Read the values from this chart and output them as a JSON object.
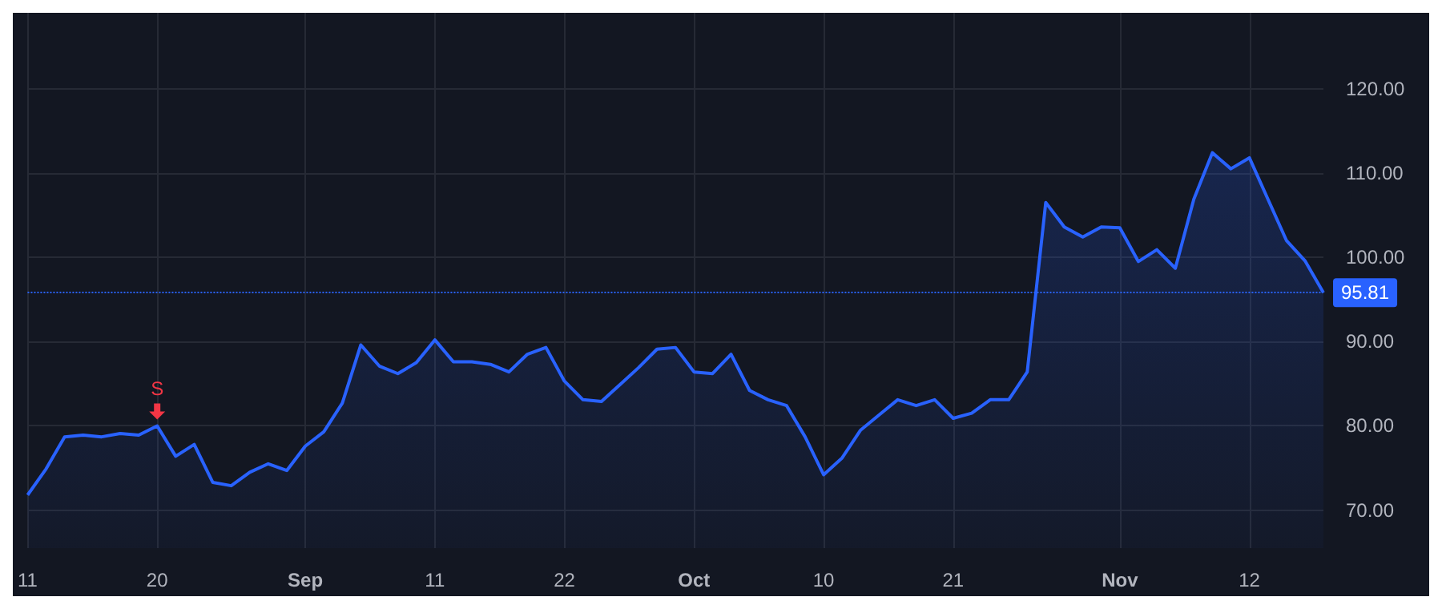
{
  "chart_data": {
    "type": "area",
    "categories": [
      "11",
      null,
      null,
      null,
      null,
      null,
      null,
      "20",
      null,
      null,
      null,
      null,
      null,
      null,
      null,
      "Sep",
      null,
      null,
      null,
      null,
      null,
      null,
      "11",
      null,
      null,
      null,
      null,
      null,
      null,
      "22",
      null,
      null,
      null,
      null,
      null,
      null,
      "Oct",
      null,
      null,
      null,
      null,
      null,
      null,
      "10",
      null,
      null,
      null,
      null,
      null,
      null,
      "21",
      null,
      null,
      null,
      null,
      null,
      null,
      null,
      null,
      "Nov",
      null,
      null,
      null,
      null,
      null,
      null,
      "12",
      null,
      null,
      null,
      null
    ],
    "series": [
      {
        "color": "#2962ff",
        "values": [
          71.8,
          74.9,
          78.7,
          78.9,
          78.7,
          79.1,
          78.9,
          80.0,
          76.4,
          77.8,
          73.3,
          72.9,
          74.5,
          75.5,
          74.7,
          77.6,
          79.3,
          82.7,
          89.6,
          87.1,
          86.2,
          87.5,
          90.2,
          87.6,
          87.6,
          87.3,
          86.4,
          88.5,
          89.3,
          85.3,
          83.1,
          82.9,
          84.9,
          86.9,
          89.1,
          89.3,
          86.4,
          86.2,
          88.5,
          84.2,
          83.1,
          82.4,
          78.7,
          74.2,
          76.2,
          79.5,
          81.3,
          83.1,
          82.4,
          83.1,
          80.9,
          81.5,
          83.1,
          83.1,
          86.4,
          106.5,
          103.6,
          102.4,
          103.6,
          103.5,
          99.5,
          100.9,
          98.7,
          106.9,
          112.4,
          110.5,
          111.8,
          106.9,
          102.0,
          99.6,
          95.81
        ]
      }
    ],
    "ylim": [
      65.5,
      129
    ],
    "yticks": [
      {
        "value": 70,
        "label": "70.00"
      },
      {
        "value": 80,
        "label": "80.00"
      },
      {
        "value": 90,
        "label": "90.00"
      },
      {
        "value": 100,
        "label": "100.00"
      },
      {
        "value": 110,
        "label": "110.00"
      },
      {
        "value": 120,
        "label": "120.00"
      }
    ],
    "ref_lines": [
      {
        "axis": "y",
        "value": 95.81,
        "label": "95.81",
        "color": "#2962ff",
        "line_style": "dotted"
      }
    ],
    "annotations": [
      {
        "text": "S",
        "x": "20",
        "y": 80.0
      }
    ],
    "grid": true,
    "marker": "none",
    "line_style": "solid"
  }
}
